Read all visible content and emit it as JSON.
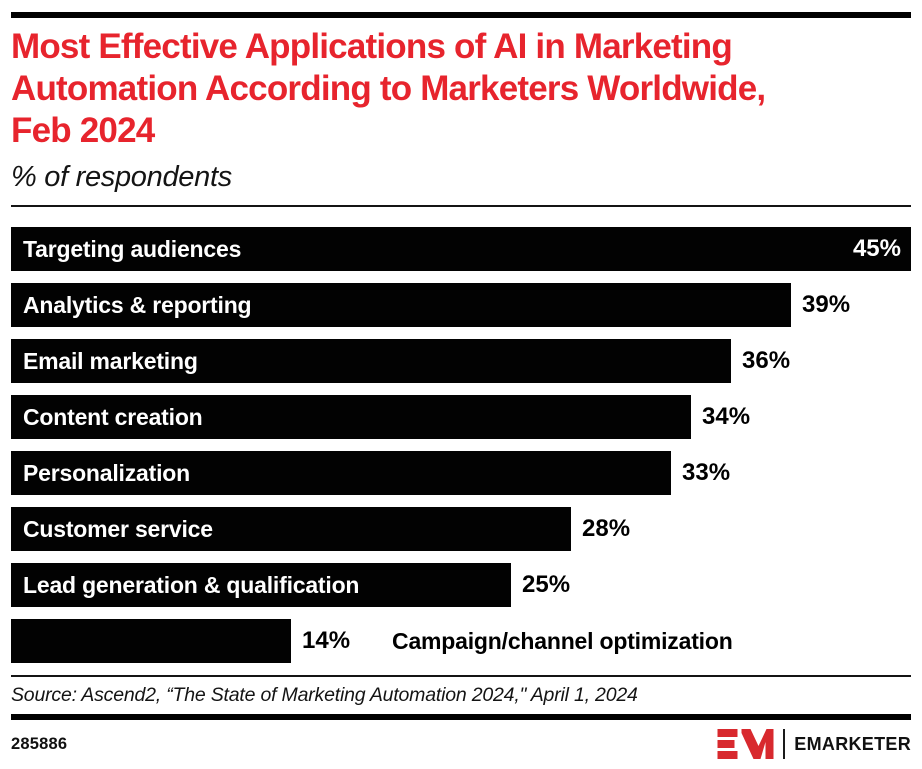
{
  "header": {
    "title": "Most Effective Applications of AI in Marketing Automation According to Marketers Worldwide, Feb 2024",
    "title_lines": [
      "Most Effective Applications of AI in Marketing",
      "Automation According to Marketers Worldwide,",
      "Feb 2024"
    ],
    "subtitle": "% of respondents"
  },
  "chart_data": {
    "type": "bar",
    "orientation": "horizontal",
    "title": "Most Effective Applications of AI in Marketing Automation According to Marketers Worldwide, Feb 2024",
    "subtitle": "% of respondents",
    "xlabel": "",
    "ylabel": "",
    "xlim": [
      0,
      45
    ],
    "value_suffix": "%",
    "grid": false,
    "categories": [
      "Targeting audiences",
      "Analytics & reporting",
      "Email marketing",
      "Content creation",
      "Personalization",
      "Customer service",
      "Lead generation & qualification",
      "Campaign/channel optimization"
    ],
    "values": [
      45,
      39,
      36,
      34,
      33,
      28,
      25,
      14
    ],
    "bars": [
      {
        "label": "Targeting audiences",
        "value": 45,
        "value_display": "45%",
        "label_position": "inside",
        "value_position": "inside"
      },
      {
        "label": "Analytics & reporting",
        "value": 39,
        "value_display": "39%",
        "label_position": "inside",
        "value_position": "outside"
      },
      {
        "label": "Email marketing",
        "value": 36,
        "value_display": "36%",
        "label_position": "inside",
        "value_position": "outside"
      },
      {
        "label": "Content creation",
        "value": 34,
        "value_display": "34%",
        "label_position": "inside",
        "value_position": "outside"
      },
      {
        "label": "Personalization",
        "value": 33,
        "value_display": "33%",
        "label_position": "inside",
        "value_position": "outside"
      },
      {
        "label": "Customer service",
        "value": 28,
        "value_display": "28%",
        "label_position": "inside",
        "value_position": "outside"
      },
      {
        "label": "Lead generation & qualification",
        "value": 25,
        "value_display": "25%",
        "label_position": "inside",
        "value_position": "outside"
      },
      {
        "label": "Campaign/channel optimization",
        "value": 14,
        "value_display": "14%",
        "label_position": "outside",
        "value_position": "outside"
      }
    ],
    "bar_color": "#020202",
    "inside_label_color": "#ffffff",
    "outside_label_color": "#000000"
  },
  "source": "Source: Ascend2, “The State of Marketing Automation 2024,\" April 1, 2024",
  "footer": {
    "chart_id": "285886",
    "brand": "EMARKETER"
  },
  "colors": {
    "title_red": "#e7242d",
    "logo_red": "#d8292e",
    "bar_black": "#020202",
    "rule_black": "#000000"
  }
}
